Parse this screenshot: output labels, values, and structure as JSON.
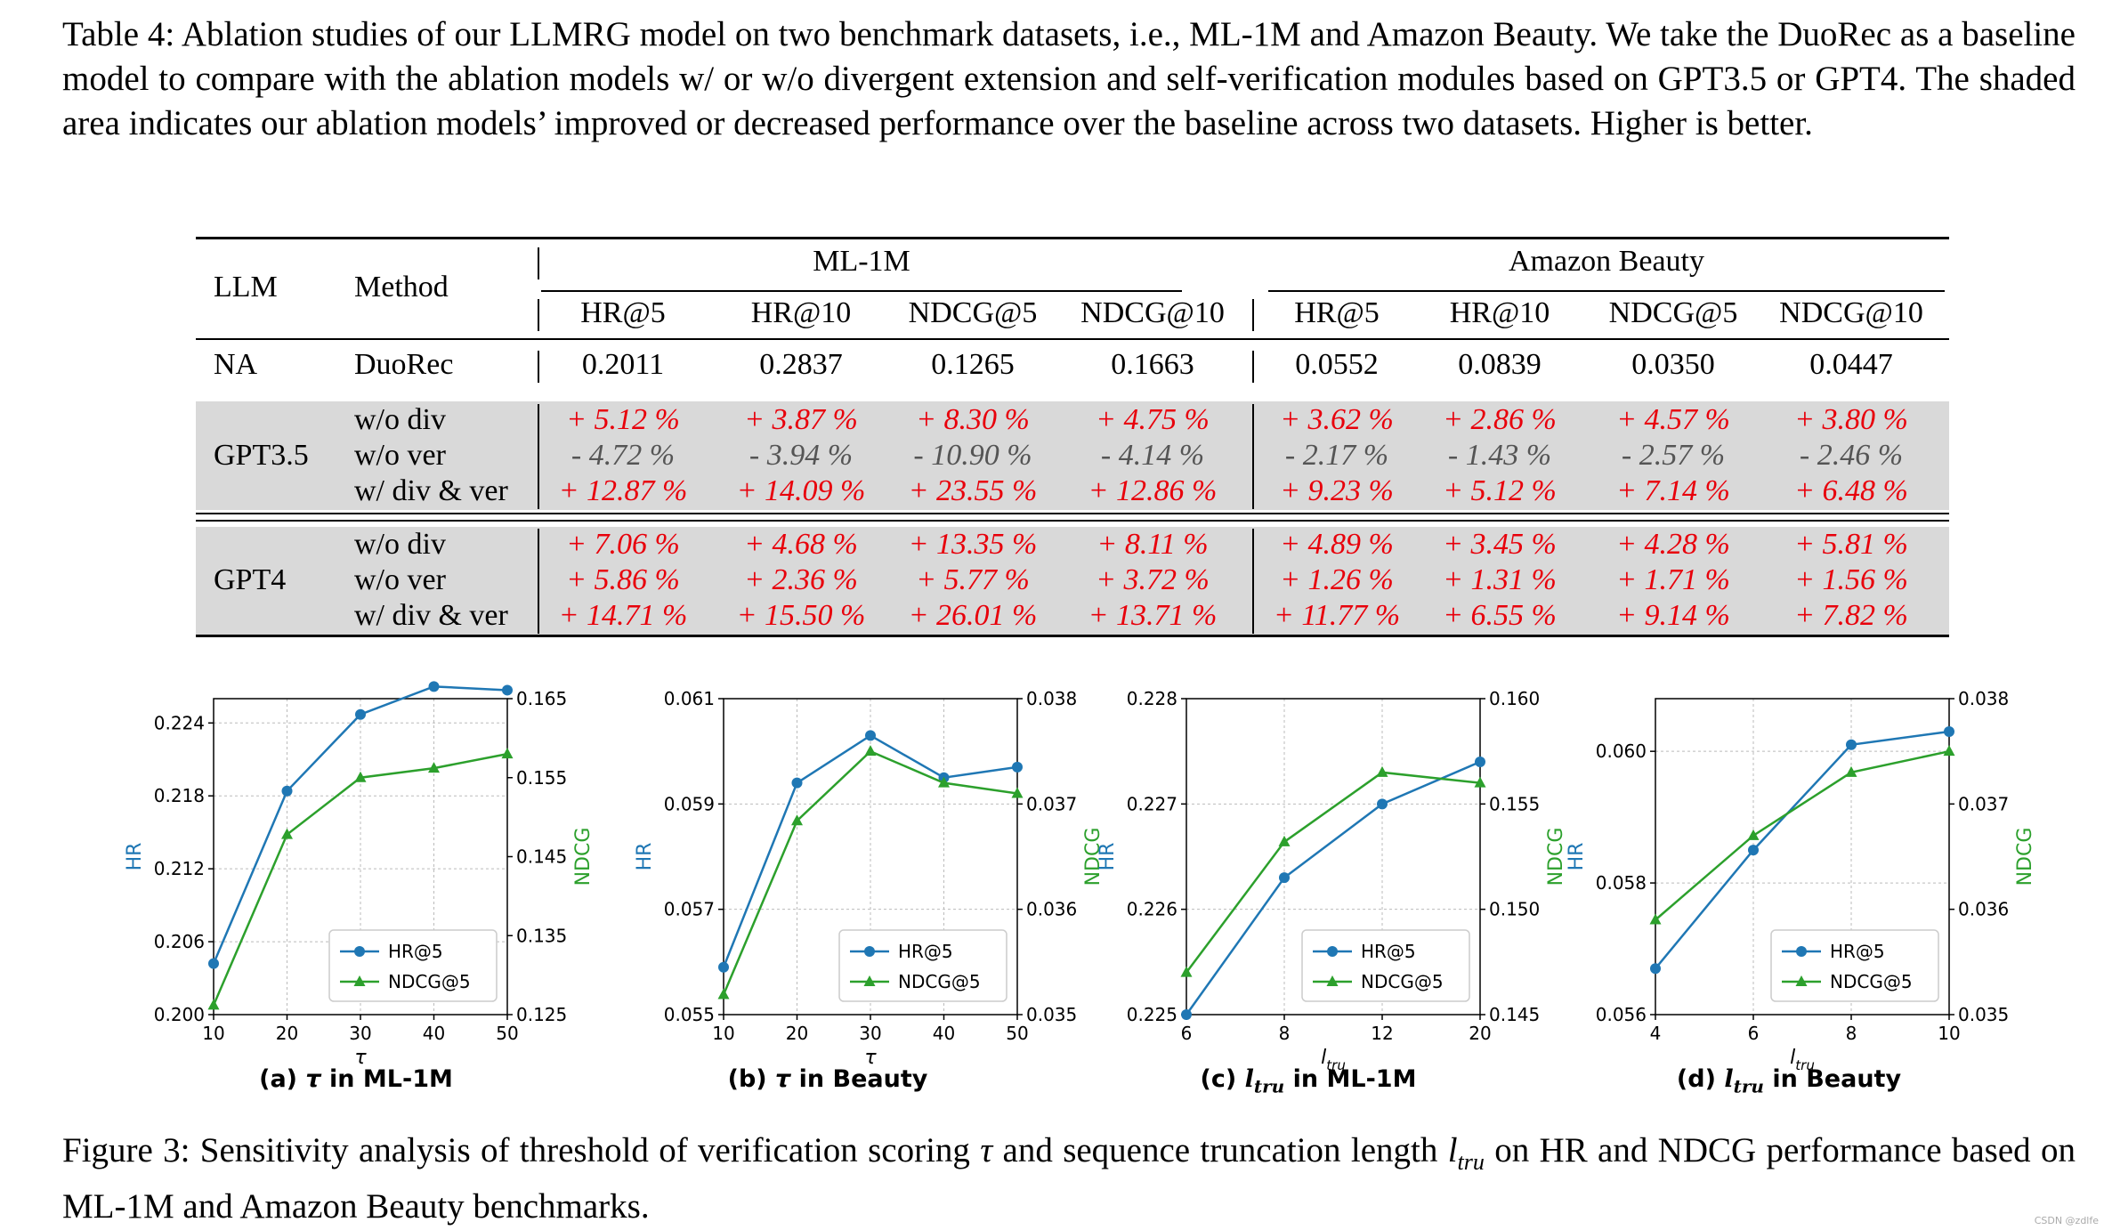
{
  "table_caption": "Table 4: Ablation studies of our LLMRG model on two benchmark datasets, i.e., ML-1M and Amazon Beauty. We take the DuoRec as a baseline model to compare with the ablation models w/ or w/o divergent extension and self-verification modules based on GPT3.5 or GPT4. The shaded area indicates our ablation models’ improved or decreased performance over the baseline across two datasets. Higher is better.",
  "figure_caption": {
    "part1": "Figure 3: Sensitivity analysis of threshold of verification scoring ",
    "tau": "τ",
    "part2": " and sequence truncation length ",
    "l": "l",
    "l_sub": "tru",
    "part3": " on HR and NDCG performance based on ML-1M and Amazon Beauty benchmarks."
  },
  "table": {
    "header": {
      "llm": "LLM",
      "method": "Method",
      "group1": "ML-1M",
      "group2": "Amazon Beauty",
      "metrics": [
        "HR@5",
        "HR@10",
        "NDCG@5",
        "NDCG@10",
        "HR@5",
        "HR@10",
        "NDCG@5",
        "NDCG@10"
      ]
    },
    "baseline": {
      "llm": "NA",
      "method": "DuoRec",
      "values": [
        "0.2011",
        "0.2837",
        "0.1265",
        "0.1663",
        "0.0552",
        "0.0839",
        "0.0350",
        "0.0447"
      ]
    },
    "blocks": [
      {
        "llm": "GPT3.5",
        "rows": [
          {
            "method": "w/o div",
            "values": [
              "+ 5.12 %",
              "+ 3.87 %",
              "+ 8.30 %",
              "+ 4.75 %",
              "+ 3.62 %",
              "+ 2.86 %",
              "+ 4.57 %",
              "+ 3.80 %"
            ],
            "sign": "pos"
          },
          {
            "method": "w/o ver",
            "values": [
              "- 4.72 %",
              "- 3.94 %",
              "- 10.90 %",
              "- 4.14 %",
              "- 2.17 %",
              "- 1.43 %",
              "- 2.57 %",
              "- 2.46 %"
            ],
            "sign": "neg"
          },
          {
            "method": "w/ div & ver",
            "values": [
              "+ 12.87 %",
              "+ 14.09 %",
              "+ 23.55 %",
              "+ 12.86 %",
              "+ 9.23 %",
              "+ 5.12 %",
              "+ 7.14 %",
              "+ 6.48 %"
            ],
            "sign": "pos"
          }
        ]
      },
      {
        "llm": "GPT4",
        "rows": [
          {
            "method": "w/o div",
            "values": [
              "+ 7.06 %",
              "+ 4.68 %",
              "+ 13.35 %",
              "+ 8.11 %",
              "+ 4.89 %",
              "+ 3.45 %",
              "+ 4.28 %",
              "+ 5.81 %"
            ],
            "sign": "pos"
          },
          {
            "method": "w/o ver",
            "values": [
              "+ 5.86 %",
              "+ 2.36 %",
              "+ 5.77 %",
              "+ 3.72 %",
              "+ 1.26 %",
              "+ 1.31 %",
              "+ 1.71 %",
              "+ 1.56 %"
            ],
            "sign": "pos"
          },
          {
            "method": "w/ div & ver",
            "values": [
              "+ 14.71 %",
              "+ 15.50 %",
              "+ 26.01 %",
              "+ 13.71 %",
              "+ 11.77 %",
              "+ 6.55 %",
              "+ 9.14 %",
              "+ 7.82 %"
            ],
            "sign": "pos"
          }
        ]
      }
    ]
  },
  "colors": {
    "hr": "#1f77b4",
    "ndcg": "#2ca02c",
    "positive": "#e8000b",
    "negative": "#555555",
    "shade": "#d9d9d9"
  },
  "chart_data": [
    {
      "type": "line",
      "caption": {
        "prefix": "(a) ",
        "sym": "τ",
        "sub": "",
        "suffix": " in ML-1M"
      },
      "xlabel": {
        "sym": "τ",
        "sub": ""
      },
      "ylabel_left": "HR",
      "ylabel_right": "NDCG",
      "x": [
        10,
        20,
        30,
        40,
        50
      ],
      "xticks": [
        "10",
        "20",
        "30",
        "40",
        "50"
      ],
      "xlim": [
        10,
        50
      ],
      "left_ylim": [
        0.2,
        0.226
      ],
      "left_ticks": [
        "0.200",
        "0.206",
        "0.212",
        "0.218",
        "0.224"
      ],
      "right_ylim": [
        0.125,
        0.165
      ],
      "right_ticks": [
        "0.125",
        "0.135",
        "0.145",
        "0.155",
        "0.165"
      ],
      "series": [
        {
          "name": "HR@5",
          "axis": "left",
          "marker": "circle",
          "values": [
            0.2042,
            0.2184,
            0.2247,
            0.227,
            0.2267
          ]
        },
        {
          "name": "NDCG@5",
          "axis": "right",
          "marker": "triangle",
          "values": [
            0.1262,
            0.1478,
            0.155,
            0.1562,
            0.158
          ]
        }
      ],
      "legend": "bottom-right"
    },
    {
      "type": "line",
      "caption": {
        "prefix": "(b) ",
        "sym": "τ",
        "sub": "",
        "suffix": " in Beauty"
      },
      "xlabel": {
        "sym": "τ",
        "sub": ""
      },
      "ylabel_left": "HR",
      "ylabel_right": "NDCG",
      "x": [
        10,
        20,
        30,
        40,
        50
      ],
      "xticks": [
        "10",
        "20",
        "30",
        "40",
        "50"
      ],
      "xlim": [
        10,
        50
      ],
      "left_ylim": [
        0.055,
        0.061
      ],
      "left_ticks": [
        "0.055",
        "0.057",
        "0.059",
        "0.061"
      ],
      "right_ylim": [
        0.035,
        0.038
      ],
      "right_ticks": [
        "0.035",
        "0.036",
        "0.037",
        "0.038"
      ],
      "series": [
        {
          "name": "HR@5",
          "axis": "left",
          "marker": "circle",
          "values": [
            0.0559,
            0.0594,
            0.0603,
            0.0595,
            0.0597
          ]
        },
        {
          "name": "NDCG@5",
          "axis": "right",
          "marker": "triangle",
          "values": [
            0.03519,
            0.03684,
            0.0375,
            0.0372,
            0.0371
          ]
        }
      ],
      "legend": "bottom-right"
    },
    {
      "type": "line",
      "caption": {
        "prefix": "(c) ",
        "sym": "l",
        "sub": "tru",
        "suffix": " in ML-1M"
      },
      "xlabel": {
        "sym": "l",
        "sub": "tru"
      },
      "ylabel_left": "HR",
      "ylabel_right": "NDCG",
      "x": [
        6,
        8,
        12,
        20
      ],
      "xticks": [
        "6",
        "8",
        "12",
        "20"
      ],
      "xlim": [
        0,
        3
      ],
      "left_ylim": [
        0.225,
        0.228
      ],
      "left_ticks": [
        "0.225",
        "0.226",
        "0.227",
        "0.228"
      ],
      "right_ylim": [
        0.145,
        0.16
      ],
      "right_ticks": [
        "0.145",
        "0.150",
        "0.155",
        "0.160"
      ],
      "series": [
        {
          "name": "HR@5",
          "axis": "left",
          "marker": "circle",
          "values": [
            0.225,
            0.2263,
            0.227,
            0.2274
          ]
        },
        {
          "name": "NDCG@5",
          "axis": "right",
          "marker": "triangle",
          "values": [
            0.147,
            0.1532,
            0.1565,
            0.156
          ]
        }
      ],
      "legend": "bottom-right"
    },
    {
      "type": "line",
      "caption": {
        "prefix": "(d) ",
        "sym": "l",
        "sub": "tru",
        "suffix": " in Beauty"
      },
      "xlabel": {
        "sym": "l",
        "sub": "tru"
      },
      "ylabel_left": "HR",
      "ylabel_right": "NDCG",
      "x": [
        4,
        6,
        8,
        10
      ],
      "xticks": [
        "4",
        "6",
        "8",
        "10"
      ],
      "xlim": [
        4,
        10
      ],
      "left_ylim": [
        0.056,
        0.0608
      ],
      "left_ticks": [
        "0.056",
        "0.058",
        "0.060"
      ],
      "right_ylim": [
        0.035,
        0.038
      ],
      "right_ticks": [
        "0.035",
        "0.036",
        "0.037",
        "0.038"
      ],
      "series": [
        {
          "name": "HR@5",
          "axis": "left",
          "marker": "circle",
          "values": [
            0.0567,
            0.0585,
            0.0601,
            0.0603
          ]
        },
        {
          "name": "NDCG@5",
          "axis": "right",
          "marker": "triangle",
          "values": [
            0.0359,
            0.0367,
            0.0373,
            0.0375
          ]
        }
      ],
      "legend": "bottom-right"
    }
  ],
  "watermark": "CSDN @zdlfe"
}
